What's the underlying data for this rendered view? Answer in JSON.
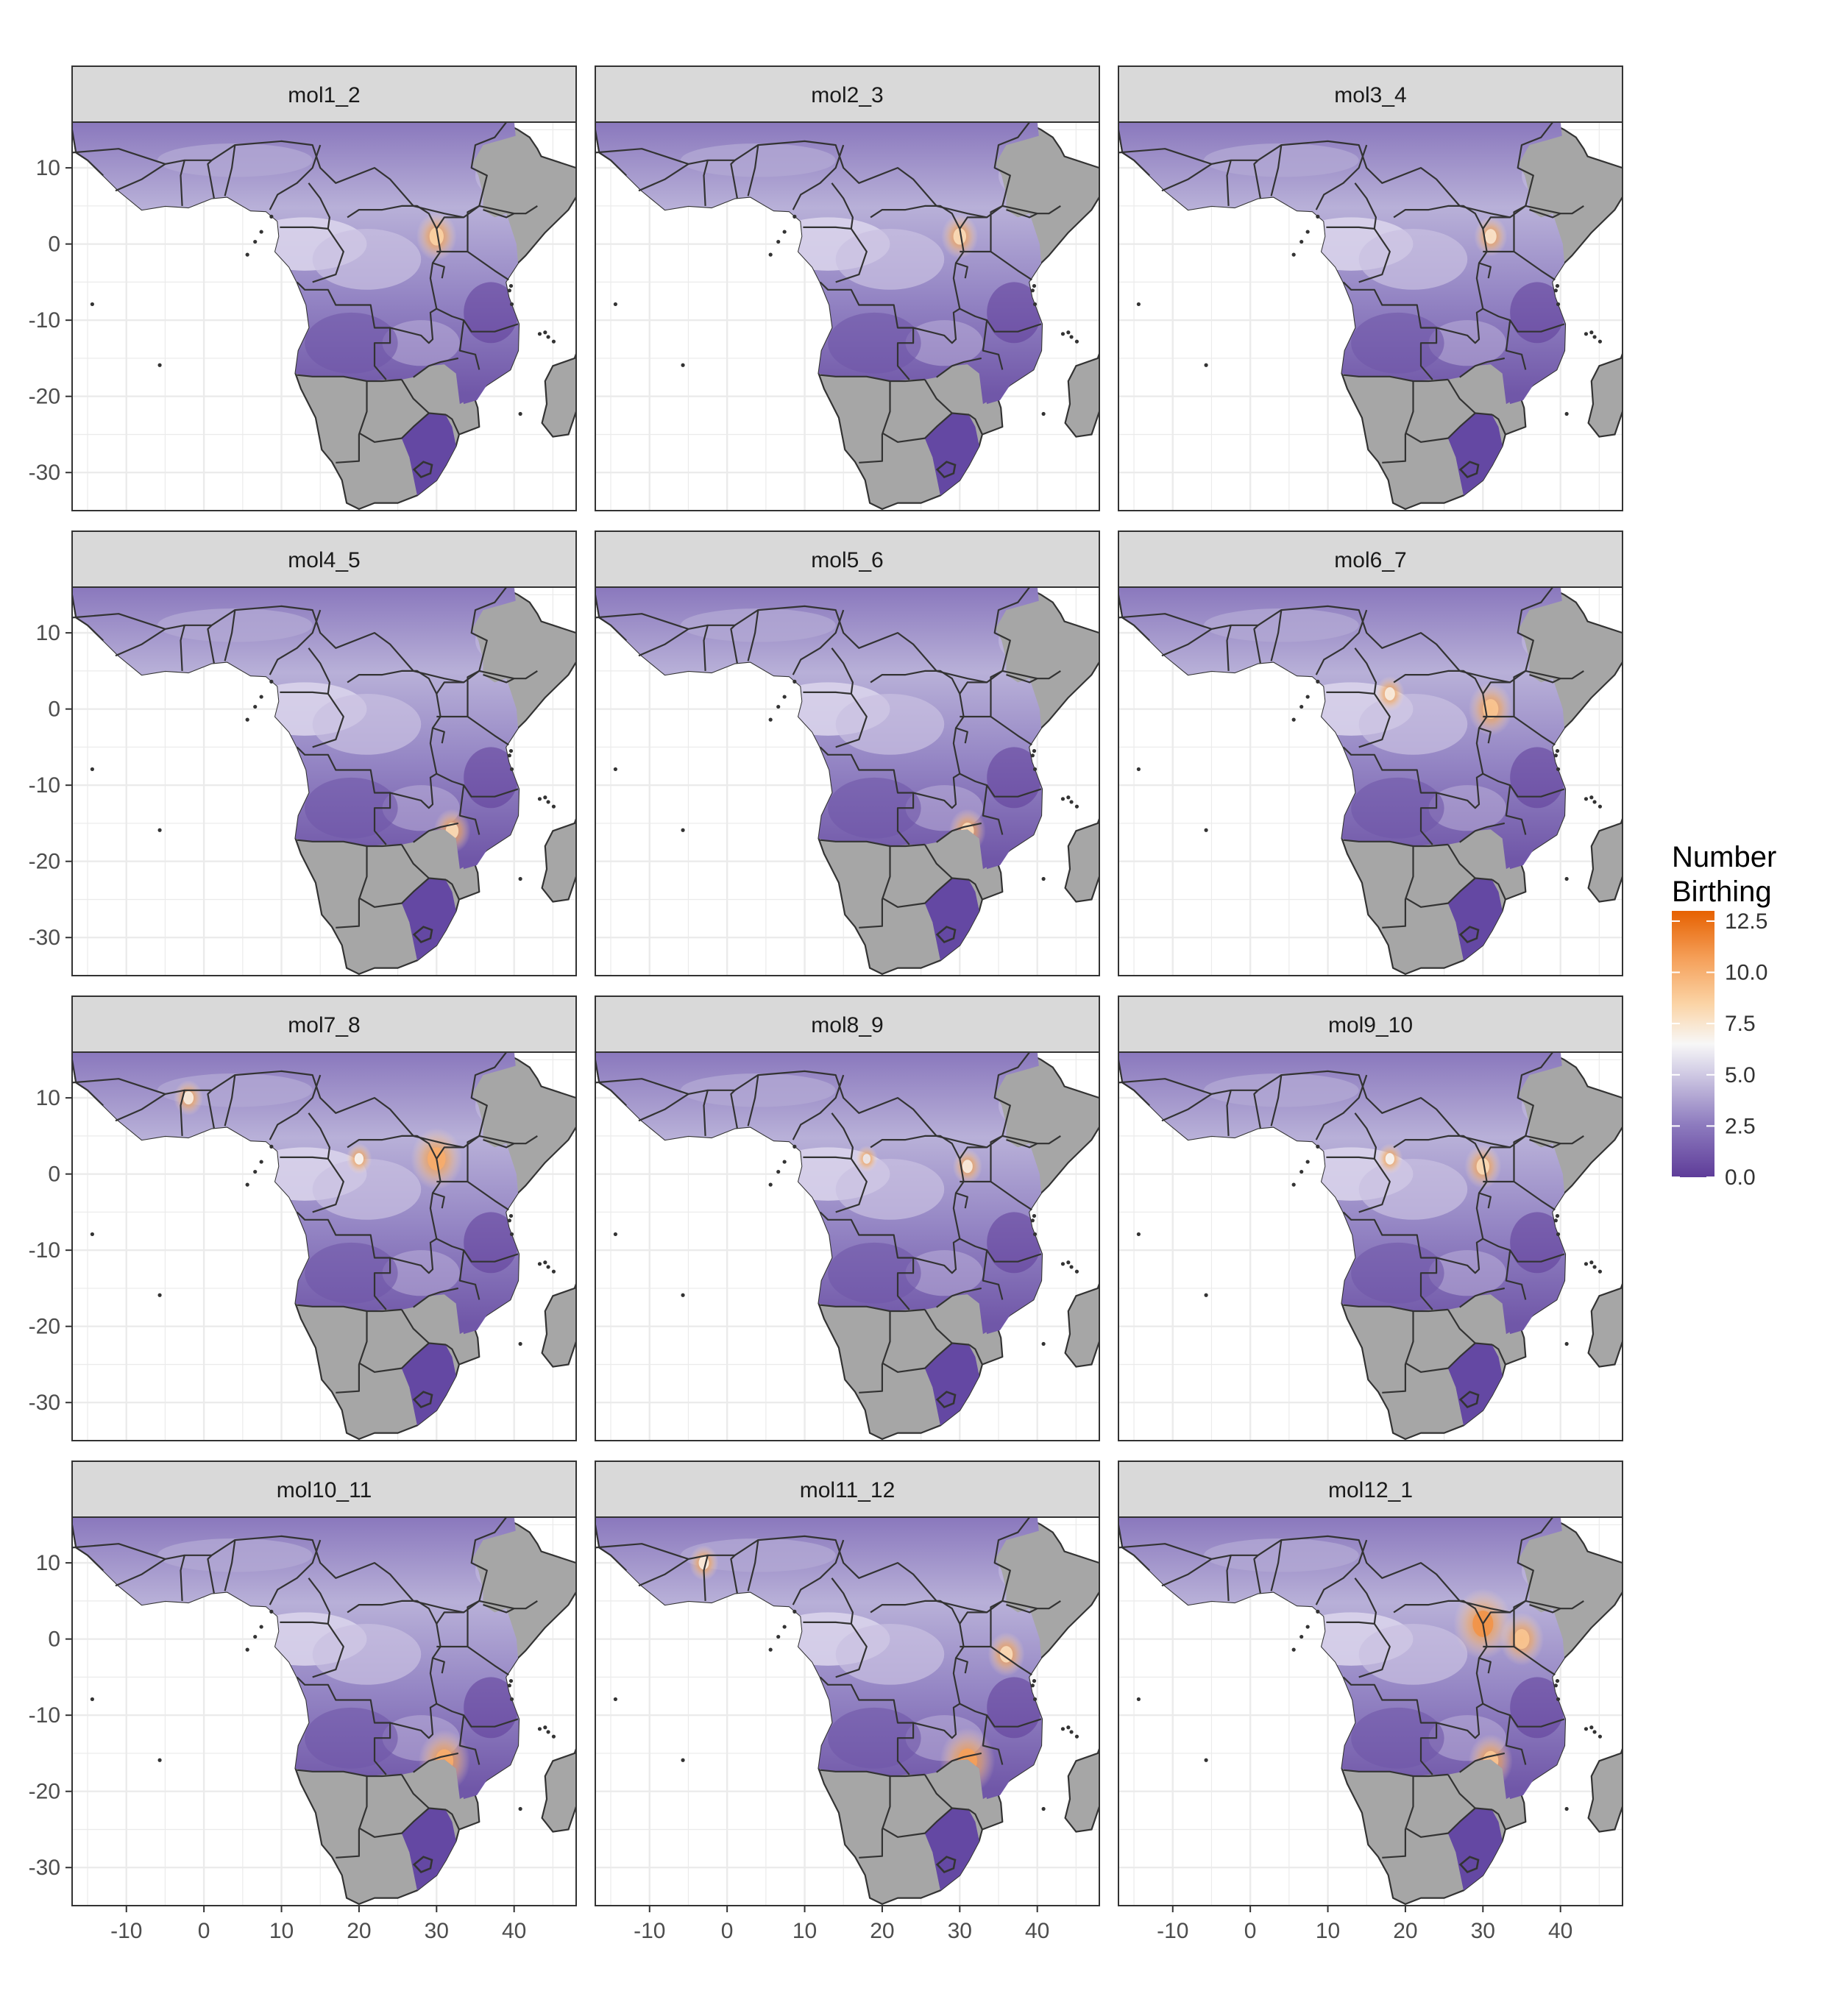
{
  "chart_data": {
    "type": "heatmap",
    "description_hidden": false,
    "panels": [
      "mol1_2",
      "mol2_3",
      "mol3_4",
      "mol4_5",
      "mol5_6",
      "mol6_7",
      "mol7_8",
      "mol8_9",
      "mol9_10",
      "mol10_11",
      "mol11_12",
      "mol12_1"
    ],
    "layout": {
      "rows": 4,
      "cols": 3
    },
    "x_axis": {
      "ticks": [
        -10,
        0,
        10,
        20,
        30,
        40
      ],
      "range": [
        -17,
        48
      ]
    },
    "y_axis": {
      "ticks": [
        10,
        0,
        -10,
        -20,
        -30
      ],
      "range": [
        -35,
        16
      ]
    },
    "legend": {
      "title_lines": [
        "Number",
        "Birthing"
      ],
      "ticks": [
        "12.5",
        "10.0",
        "7.5",
        "5.0",
        "2.5",
        "0.0"
      ],
      "tick_values": [
        12.5,
        10.0,
        7.5,
        5.0,
        2.5,
        0.0
      ],
      "range": [
        0,
        13
      ],
      "placement": "right"
    },
    "colors": {
      "low": "#5e3c99",
      "mid": "#f7f7f7",
      "high": "#e66101",
      "land": "#a6a6a6",
      "border": "#333333",
      "strip": "#d9d9d9",
      "grid": "#ebebeb"
    },
    "hotspots": [
      [
        {
          "lon": 30,
          "lat": 1,
          "value": 8.5
        }
      ],
      [
        {
          "lon": 30,
          "lat": 1,
          "value": 8
        }
      ],
      [
        {
          "lon": 31,
          "lat": 1,
          "value": 7.5
        }
      ],
      [
        {
          "lon": 32,
          "lat": -16,
          "value": 8
        }
      ],
      [
        {
          "lon": 31,
          "lat": -16,
          "value": 8
        }
      ],
      [
        {
          "lon": 31,
          "lat": 0,
          "value": 9
        },
        {
          "lon": 18,
          "lat": 2,
          "value": 7
        }
      ],
      [
        {
          "lon": 30,
          "lat": 2,
          "value": 10
        },
        {
          "lon": -2,
          "lat": 10,
          "value": 7
        },
        {
          "lon": 20,
          "lat": 2,
          "value": 6.5
        }
      ],
      [
        {
          "lon": 31,
          "lat": 1,
          "value": 7
        },
        {
          "lon": 18,
          "lat": 2,
          "value": 6
        }
      ],
      [
        {
          "lon": 30,
          "lat": 1,
          "value": 8
        },
        {
          "lon": 18,
          "lat": 2,
          "value": 6.5
        }
      ],
      [
        {
          "lon": 31,
          "lat": -16,
          "value": 10
        }
      ],
      [
        {
          "lon": 31,
          "lat": -16,
          "value": 10.5
        },
        {
          "lon": 36,
          "lat": -2,
          "value": 8
        },
        {
          "lon": -3,
          "lat": 10,
          "value": 7
        }
      ],
      [
        {
          "lon": 30,
          "lat": 2,
          "value": 11
        },
        {
          "lon": 35,
          "lat": 0,
          "value": 9
        },
        {
          "lon": 31,
          "lat": -16,
          "value": 9
        }
      ]
    ]
  }
}
